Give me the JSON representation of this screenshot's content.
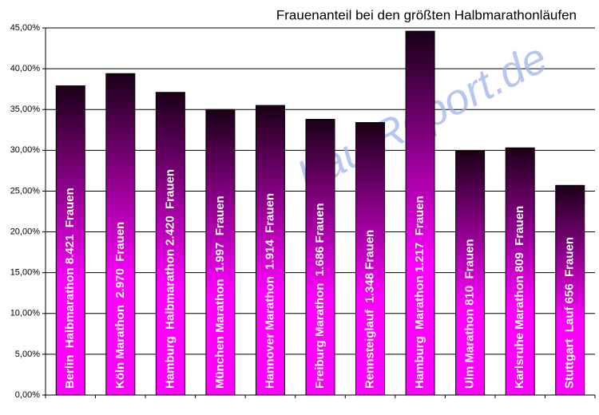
{
  "chart_data": {
    "type": "bar",
    "title": "Frauenanteil bei den größten Halbmarathonläufen",
    "watermark": "LaufReport.de",
    "categories": [
      "Berlin  Halbmarathon 8.421  Frauen",
      "Köln Marathon  2.970  Frauen",
      "Hamburg  Halbmarathon 2.420  Frauen",
      "München Marathon  1.997  Frauen",
      "Hannover Marathon  1.914  Frauen",
      "Freiburg Marathon  1.686 Frauen",
      "Rennsteiglauf  1.348 Frauen",
      "Hamburg  Marathon 1.217  Frauen",
      "Ulm Marathon 810  Frauen",
      "Karlsruhe Marathon 809  Frauen",
      "Stuttgart  Lauf 656  Frauen"
    ],
    "values": [
      37.9,
      39.4,
      37.1,
      35.0,
      35.5,
      33.8,
      33.4,
      44.6,
      29.9,
      30.3,
      25.7
    ],
    "color": "#ff00ff",
    "ylim": [
      0,
      45
    ],
    "yticks": [
      {
        "value": 0,
        "label": "0,00%"
      },
      {
        "value": 5,
        "label": "5,00%"
      },
      {
        "value": 10,
        "label": "10,00%"
      },
      {
        "value": 15,
        "label": "15,00%"
      },
      {
        "value": 20,
        "label": "20,00%"
      },
      {
        "value": 25,
        "label": "25,00%"
      },
      {
        "value": 30,
        "label": "30,00%"
      },
      {
        "value": 35,
        "label": "35,00%"
      },
      {
        "value": 40,
        "label": "40,00%"
      },
      {
        "value": 45,
        "label": "45,00%"
      }
    ],
    "grid": true
  }
}
